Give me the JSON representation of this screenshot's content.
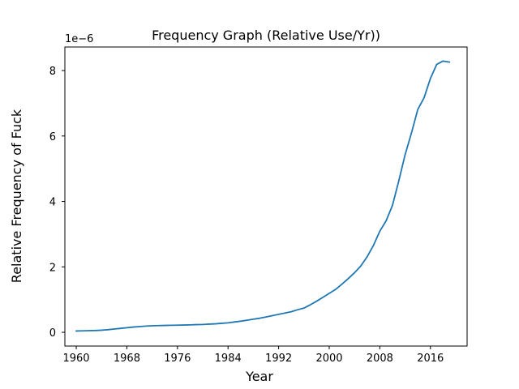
{
  "chart_data": {
    "type": "line",
    "title": "Frequency Graph (Relative Use/Yr))",
    "xlabel": "Year",
    "ylabel": "Relative Frequency of Fuck",
    "y_offset_label": "1e−6",
    "xlim": [
      1958.2,
      2021.8
    ],
    "ylim": [
      -0.42,
      8.72
    ],
    "x_ticks": [
      1960,
      1968,
      1976,
      1984,
      1992,
      2000,
      2008,
      2016
    ],
    "y_ticks": [
      0,
      2,
      4,
      6,
      8
    ],
    "grid": false,
    "legend": "none",
    "line_color": "#1f77b4",
    "series": [
      {
        "x": [
          1960,
          1961,
          1962,
          1963,
          1964,
          1965,
          1966,
          1967,
          1968,
          1969,
          1970,
          1971,
          1972,
          1973,
          1974,
          1975,
          1976,
          1977,
          1978,
          1979,
          1980,
          1981,
          1982,
          1983,
          1984,
          1985,
          1986,
          1987,
          1988,
          1989,
          1990,
          1991,
          1992,
          1993,
          1994,
          1995,
          1996,
          1997,
          1998,
          1999,
          2000,
          2001,
          2002,
          2003,
          2004,
          2005,
          2006,
          2007,
          2008,
          2009,
          2010,
          2011,
          2012,
          2013,
          2014,
          2015,
          2016,
          2017,
          2018,
          2019
        ],
        "y": [
          0.04,
          0.045,
          0.05,
          0.055,
          0.065,
          0.08,
          0.1,
          0.12,
          0.14,
          0.16,
          0.175,
          0.19,
          0.2,
          0.205,
          0.21,
          0.215,
          0.218,
          0.222,
          0.228,
          0.235,
          0.24,
          0.25,
          0.26,
          0.275,
          0.29,
          0.315,
          0.34,
          0.37,
          0.4,
          0.43,
          0.47,
          0.51,
          0.55,
          0.59,
          0.63,
          0.69,
          0.74,
          0.84,
          0.95,
          1.07,
          1.19,
          1.31,
          1.47,
          1.64,
          1.82,
          2.03,
          2.31,
          2.66,
          3.09,
          3.41,
          3.88,
          4.63,
          5.43,
          6.09,
          6.81,
          7.17,
          7.76,
          8.19,
          8.29,
          8.26
        ]
      }
    ]
  }
}
